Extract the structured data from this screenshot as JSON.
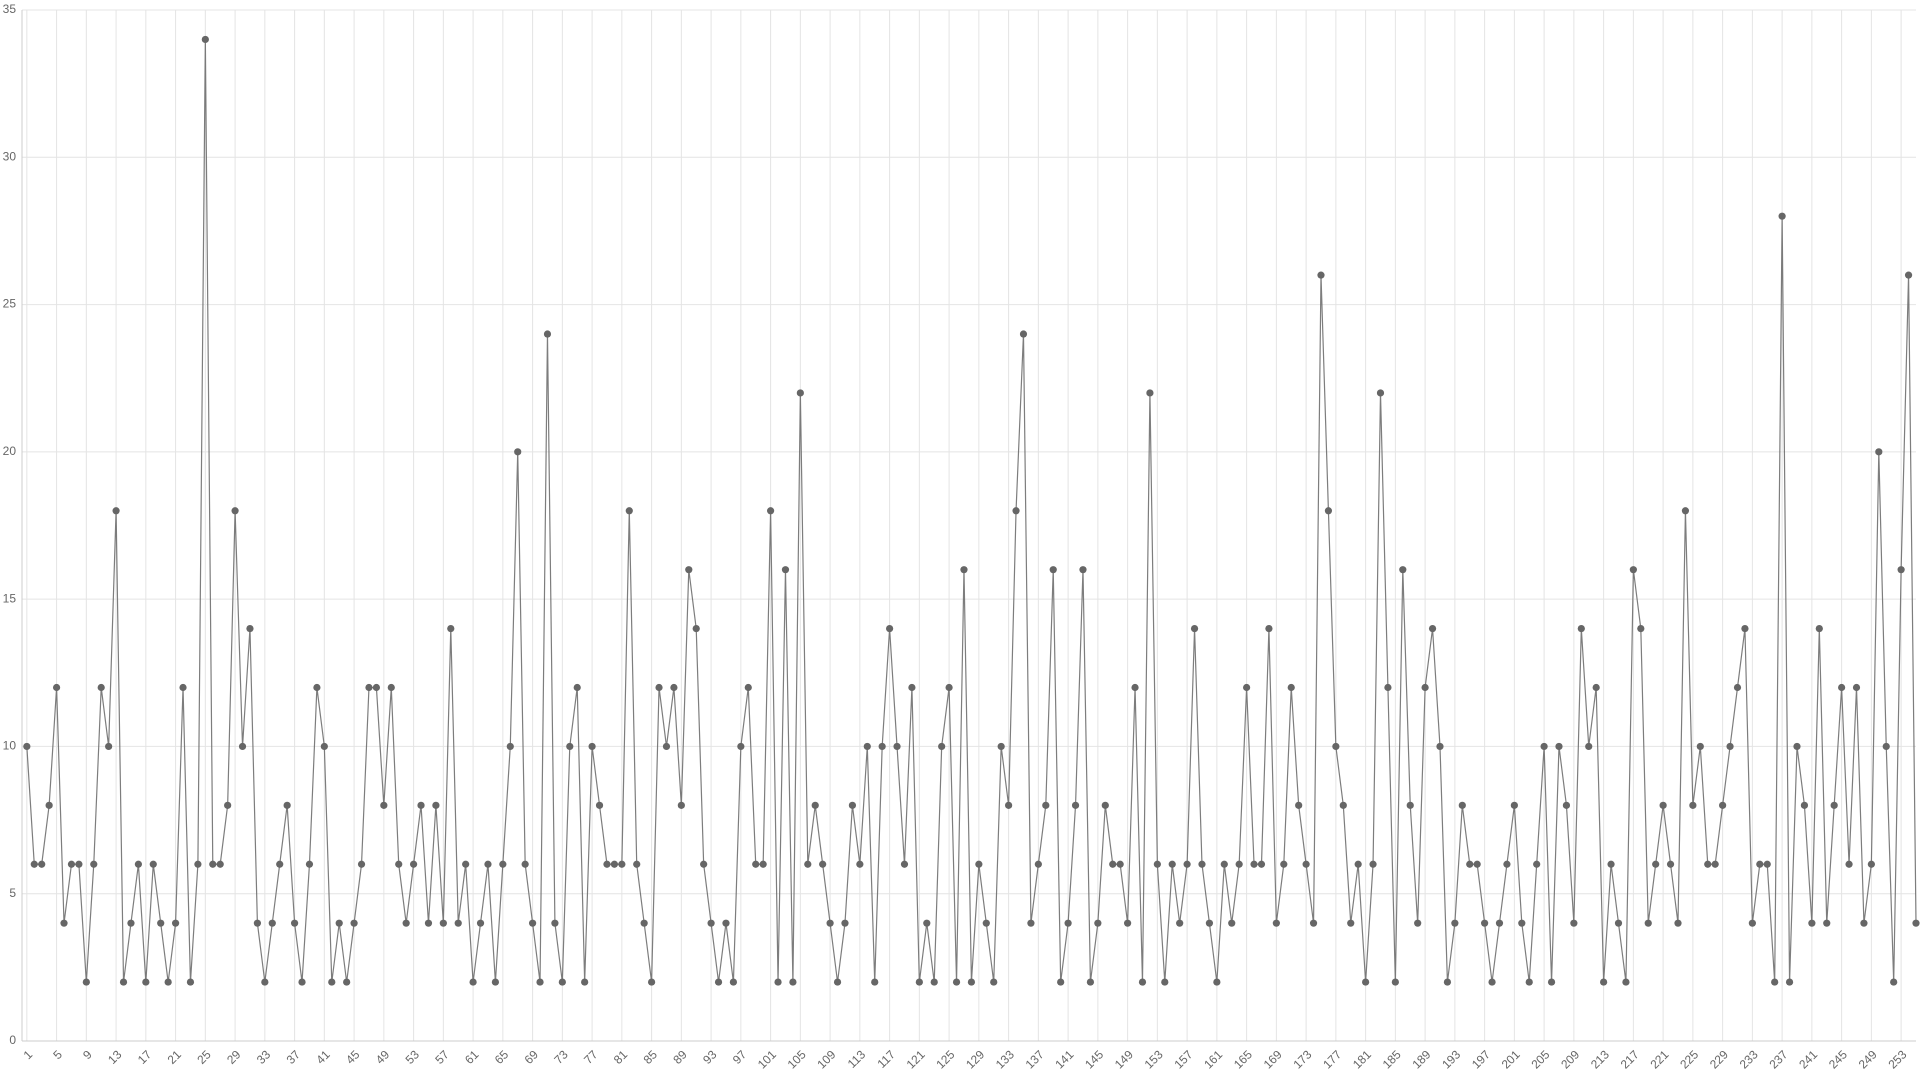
{
  "chart_data": {
    "type": "line",
    "x": [
      1,
      2,
      3,
      4,
      5,
      6,
      7,
      8,
      9,
      10,
      11,
      12,
      13,
      14,
      15,
      16,
      17,
      18,
      19,
      20,
      21,
      22,
      23,
      24,
      25,
      26,
      27,
      28,
      29,
      30,
      31,
      32,
      33,
      34,
      35,
      36,
      37,
      38,
      39,
      40,
      41,
      42,
      43,
      44,
      45,
      46,
      47,
      48,
      49,
      50,
      51,
      52,
      53,
      54,
      55,
      56,
      57,
      58,
      59,
      60,
      61,
      62,
      63,
      64,
      65,
      66,
      67,
      68,
      69,
      70,
      71,
      72,
      73,
      74,
      75,
      76,
      77,
      78,
      79,
      80,
      81,
      82,
      83,
      84,
      85,
      86,
      87,
      88,
      89,
      90,
      91,
      92,
      93,
      94,
      95,
      96,
      97,
      98,
      99,
      100,
      101,
      102,
      103,
      104,
      105,
      106,
      107,
      108,
      109,
      110,
      111,
      112,
      113,
      114,
      115,
      116,
      117,
      118,
      119,
      120,
      121,
      122,
      123,
      124,
      125,
      126,
      127,
      128,
      129,
      130,
      131,
      132,
      133,
      134,
      135,
      136,
      137,
      138,
      139,
      140,
      141,
      142,
      143,
      144,
      145,
      146,
      147,
      148,
      149,
      150,
      151,
      152,
      153,
      154,
      155,
      156,
      157,
      158,
      159,
      160,
      161,
      162,
      163,
      164,
      165,
      166,
      167,
      168,
      169,
      170,
      171,
      172,
      173,
      174,
      175,
      176,
      177,
      178,
      179,
      180,
      181,
      182,
      183,
      184,
      185,
      186,
      187,
      188,
      189,
      190,
      191,
      192,
      193,
      194,
      195,
      196,
      197,
      198,
      199,
      200,
      201,
      202,
      203,
      204,
      205,
      206,
      207,
      208,
      209,
      210,
      211,
      212,
      213,
      214,
      215,
      216,
      217,
      218,
      219,
      220,
      221,
      222,
      223,
      224,
      225,
      226,
      227,
      228,
      229,
      230,
      231,
      232,
      233,
      234,
      235,
      236,
      237,
      238,
      239,
      240,
      241,
      242,
      243,
      244,
      245,
      246,
      247,
      248,
      249,
      250,
      251,
      252,
      253,
      254,
      255
    ],
    "values": [
      10,
      6,
      6,
      8,
      12,
      4,
      6,
      6,
      2,
      6,
      12,
      10,
      18,
      2,
      4,
      6,
      2,
      6,
      4,
      2,
      4,
      12,
      2,
      6,
      34,
      6,
      6,
      8,
      18,
      10,
      14,
      4,
      2,
      4,
      6,
      8,
      4,
      2,
      6,
      12,
      10,
      2,
      4,
      2,
      4,
      6,
      12,
      12,
      8,
      12,
      6,
      4,
      6,
      8,
      4,
      8,
      4,
      14,
      4,
      6,
      2,
      4,
      6,
      2,
      6,
      10,
      20,
      6,
      4,
      2,
      24,
      4,
      2,
      10,
      12,
      2,
      10,
      8,
      6,
      6,
      6,
      18,
      6,
      4,
      2,
      12,
      10,
      12,
      8,
      16,
      14,
      6,
      4,
      2,
      4,
      2,
      10,
      12,
      6,
      6,
      18,
      2,
      16,
      2,
      22,
      6,
      8,
      6,
      4,
      2,
      4,
      8,
      6,
      10,
      2,
      10,
      14,
      10,
      6,
      12,
      2,
      4,
      2,
      10,
      12,
      2,
      16,
      2,
      6,
      4,
      2,
      10,
      8,
      18,
      24,
      4,
      6,
      8,
      16,
      2,
      4,
      8,
      16,
      2,
      4,
      8,
      6,
      6,
      4,
      12,
      2,
      22,
      6,
      2,
      6,
      4,
      6,
      14,
      6,
      4,
      2,
      6,
      4,
      6,
      12,
      6,
      6,
      14,
      4,
      6,
      12,
      8,
      6,
      4,
      26,
      18,
      10,
      8,
      4,
      6,
      2,
      6,
      22,
      12,
      2,
      16,
      8,
      4,
      12,
      14,
      10,
      2,
      4,
      8,
      6,
      6,
      4,
      2,
      4,
      6,
      8,
      4,
      2,
      6,
      10,
      2,
      10,
      8,
      4,
      14,
      10,
      12,
      2,
      6,
      4,
      2,
      16,
      14,
      4,
      6,
      8,
      6,
      4,
      18,
      8,
      10,
      6,
      6,
      8,
      10,
      12,
      14,
      4,
      6,
      6,
      2,
      28,
      2,
      10,
      8,
      4,
      14,
      4,
      8,
      12,
      6,
      12,
      4,
      6,
      20,
      10,
      2,
      16,
      26,
      4
    ],
    "color": "#666666",
    "xlim": [
      0.35,
      255
    ],
    "xticks": [
      1,
      5,
      9,
      13,
      17,
      21,
      25,
      29,
      33,
      37,
      41,
      45,
      49,
      53,
      57,
      61,
      65,
      69,
      73,
      77,
      81,
      85,
      89,
      93,
      97,
      101,
      105,
      109,
      113,
      117,
      121,
      125,
      129,
      133,
      137,
      141,
      145,
      149,
      153,
      157,
      161,
      165,
      169,
      173,
      177,
      181,
      185,
      189,
      193,
      197,
      201,
      205,
      209,
      213,
      217,
      221,
      225,
      229,
      233,
      237,
      241,
      245,
      249,
      253
    ],
    "ylim": [
      0,
      35
    ],
    "yticks": [
      0,
      5,
      10,
      15,
      20,
      25,
      30,
      35
    ],
    "grid": true
  }
}
